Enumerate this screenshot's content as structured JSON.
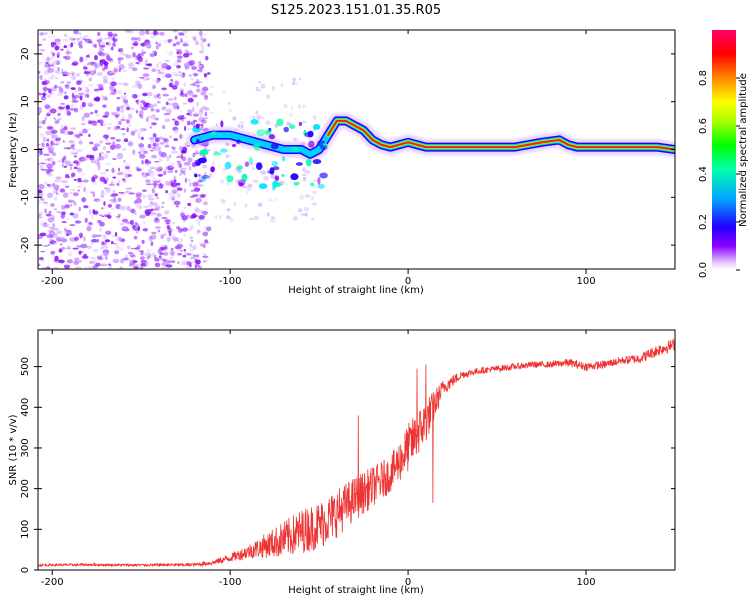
{
  "title": "S125.2023.151.01.35.R05",
  "chart_data": [
    {
      "type": "heatmap",
      "title": "S125.2023.151.01.35.R05",
      "xlabel": "Height of straight line (km)",
      "ylabel": "Frequency (Hz)",
      "xlim": [
        -208,
        150
      ],
      "ylim": [
        -25,
        25
      ],
      "x_ticks": [
        -200,
        -100,
        0,
        100
      ],
      "x_tick_labels": [
        "-200",
        "-100",
        "0",
        "100"
      ],
      "y_ticks": [
        -20,
        -10,
        0,
        10,
        20
      ],
      "y_tick_labels": [
        "-20",
        "-10",
        "0",
        "10",
        "20"
      ],
      "colorbar": {
        "label": "Normalized spectral amplitude",
        "range": [
          0,
          1
        ],
        "ticks": [
          0.0,
          0.2,
          0.4,
          0.6,
          0.8
        ],
        "tick_labels": [
          "0.0",
          "0.2",
          "0.4",
          "0.6",
          "0.8"
        ],
        "colormap": "gist_rainbow_r"
      },
      "noise_region": {
        "x_range": [
          -208,
          -112
        ],
        "y_range": [
          -25,
          25
        ],
        "amplitude": 0.1
      },
      "ridge": {
        "x": [
          -120,
          -110,
          -100,
          -90,
          -80,
          -70,
          -60,
          -55,
          -50,
          -45,
          -40,
          -35,
          -30,
          -25,
          -20,
          -15,
          -10,
          -5,
          0,
          5,
          10,
          20,
          40,
          60,
          75,
          85,
          90,
          95,
          100,
          120,
          140,
          150
        ],
        "freq": [
          2,
          3,
          3,
          2,
          1,
          0,
          0,
          -1,
          0,
          3,
          6,
          6,
          5,
          4,
          2,
          1,
          0.5,
          1,
          1.5,
          1,
          0.5,
          0.5,
          0.5,
          0.5,
          1.5,
          2,
          1,
          0.5,
          0.5,
          0.5,
          0.5,
          0
        ]
      }
    },
    {
      "type": "line",
      "xlabel": "Height of straight line (km)",
      "ylabel": "SNR (10 * v/v)",
      "xlim": [
        -208,
        150
      ],
      "ylim": [
        0,
        590
      ],
      "x_ticks": [
        -200,
        -100,
        0,
        100
      ],
      "x_tick_labels": [
        "-200",
        "-100",
        "0",
        "100"
      ],
      "y_ticks": [
        0,
        100,
        200,
        300,
        400,
        500
      ],
      "y_tick_labels": [
        "0",
        "100",
        "200",
        "300",
        "400",
        "500"
      ],
      "color": "#ee3333",
      "series": [
        {
          "name": "SNR",
          "x": [
            -208,
            -180,
            -150,
            -120,
            -110,
            -100,
            -90,
            -80,
            -70,
            -60,
            -50,
            -40,
            -30,
            -20,
            -10,
            0,
            10,
            20,
            30,
            40,
            50,
            60,
            70,
            80,
            90,
            100,
            110,
            120,
            130,
            140,
            150
          ],
          "y": [
            12,
            13,
            12,
            13,
            18,
            30,
            45,
            60,
            75,
            95,
            110,
            140,
            175,
            205,
            235,
            300,
            365,
            450,
            480,
            490,
            495,
            500,
            505,
            505,
            510,
            500,
            505,
            515,
            520,
            540,
            555
          ],
          "noise_amplitude": [
            3,
            3,
            3,
            4,
            6,
            10,
            18,
            30,
            45,
            55,
            60,
            60,
            55,
            50,
            45,
            60,
            55,
            20,
            10,
            8,
            8,
            8,
            8,
            8,
            10,
            10,
            10,
            10,
            12,
            15,
            15
          ]
        }
      ],
      "spikes": [
        {
          "x": -28,
          "y": 380
        },
        {
          "x": 5,
          "y": 495
        },
        {
          "x": 10,
          "y": 505
        },
        {
          "x": 14,
          "y": 165
        }
      ]
    }
  ]
}
